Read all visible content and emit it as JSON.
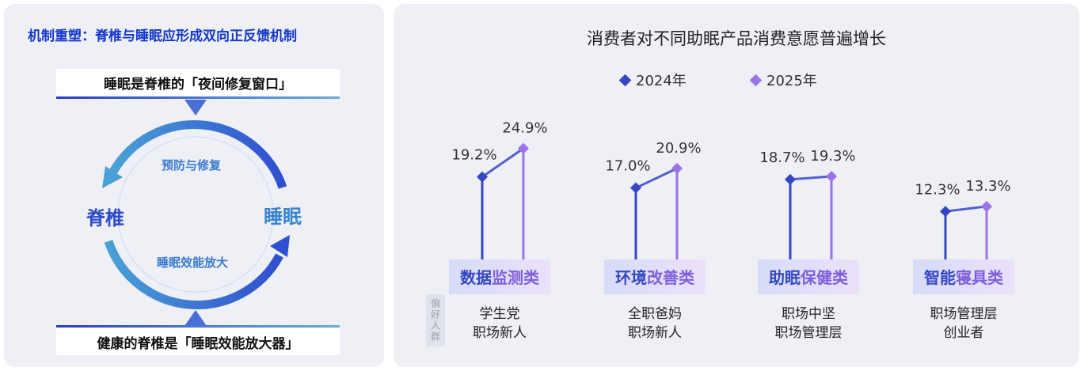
{
  "left": {
    "title": "机制重塑：脊椎与睡眠应形成双向正反馈机制",
    "top_band": "睡眠是脊椎的「夜间修复窗口」",
    "bottom_band": "健康的脊椎是「睡眠效能放大器」",
    "node_left": "脊椎",
    "node_right": "睡眠",
    "arc_top": "预防与修复",
    "arc_bottom": "睡眠效能放大"
  },
  "right": {
    "pref_badge": "偏好人群",
    "groups": [
      {
        "line1": "学生党",
        "line2": "职场新人"
      },
      {
        "line1": "全职爸妈",
        "line2": "职场新人"
      },
      {
        "line1": "职场中坚",
        "line2": "职场管理层"
      },
      {
        "line1": "职场管理层",
        "line2": "创业者"
      }
    ]
  },
  "colors": {
    "y2024": "#3447c4",
    "y2025": "#9b72e8",
    "title_blue": "#1437c8"
  },
  "chart_data": {
    "type": "line",
    "title": "消费者对不同助眠产品消费意愿普遍增长",
    "categories": [
      "数据监测类",
      "环境改善类",
      "助眠保健类",
      "智能寝具类"
    ],
    "series": [
      {
        "name": "2024年",
        "values": [
          19.2,
          17.0,
          18.7,
          12.3
        ],
        "labels": [
          "19.2%",
          "17.0%",
          "18.7%",
          "12.3%"
        ]
      },
      {
        "name": "2025年",
        "values": [
          24.9,
          20.9,
          19.3,
          13.3
        ],
        "labels": [
          "24.9%",
          "20.9%",
          "19.3%",
          "13.3%"
        ]
      }
    ],
    "unit": "%",
    "legend_position": "top-center",
    "grid": false
  }
}
